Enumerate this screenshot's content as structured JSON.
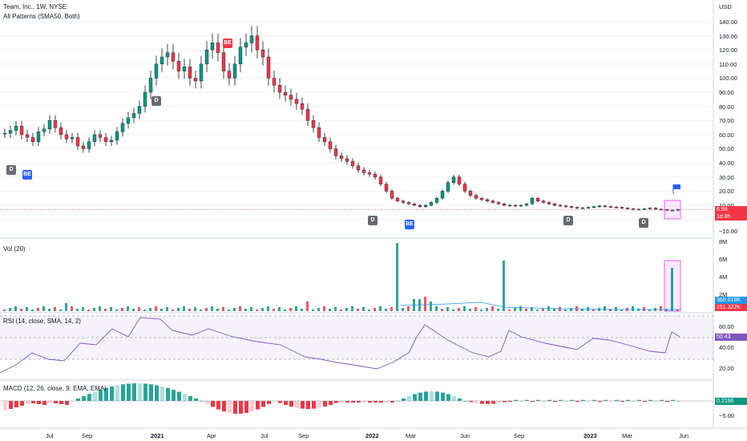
{
  "header": {
    "title": "Team, Inc., 1W, NYSE",
    "indicator": "All Patterns (SMA50, Both)"
  },
  "price_axis": {
    "currency": "USD",
    "ticks": [
      "140.00",
      "130.00",
      "120.00",
      "110.00",
      "100.00",
      "90.00",
      "80.00",
      "70.00",
      "60.00",
      "50.00",
      "40.00",
      "30.00",
      "20.00",
      "10.00",
      "−10.00"
    ],
    "last_price": "6.99",
    "countdown": "1d 8h"
  },
  "volume": {
    "label": "Vol (20)",
    "ticks": [
      "8M",
      "6M",
      "4M",
      "2M"
    ],
    "value_blue": "360.019K",
    "value_red": "151.322K"
  },
  "rsi": {
    "label": "RSI (14, close, SMA, 14, 2)",
    "ticks": [
      "60.00",
      "40.00",
      "20.00"
    ],
    "value": "50.43"
  },
  "macd": {
    "label": "MACD (12, 26, close, 9, EMA, EMA)",
    "ticks": [
      "0.00",
      "−5.00"
    ],
    "value": "0.2196"
  },
  "time_axis": {
    "ticks": [
      {
        "label": "Jul",
        "year": false
      },
      {
        "label": "Sep",
        "year": false
      },
      {
        "label": "2021",
        "year": true
      },
      {
        "label": "Apr",
        "year": false
      },
      {
        "label": "Jul",
        "year": false
      },
      {
        "label": "Sep",
        "year": false
      },
      {
        "label": "2022",
        "year": true
      },
      {
        "label": "Mar",
        "year": false
      },
      {
        "label": "Jun",
        "year": false
      },
      {
        "label": "Sep",
        "year": false
      },
      {
        "label": "2023",
        "year": true
      },
      {
        "label": "Mar",
        "year": false
      },
      {
        "label": "Jun",
        "year": false
      }
    ]
  },
  "pattern_tags": [
    {
      "text": "D",
      "kind": "d"
    },
    {
      "text": "BE",
      "kind": "be"
    },
    {
      "text": "D",
      "kind": "d"
    },
    {
      "text": "BE",
      "kind": "bear"
    },
    {
      "text": "D",
      "kind": "d"
    },
    {
      "text": "BE",
      "kind": "be"
    },
    {
      "text": "D",
      "kind": "d"
    },
    {
      "text": "D",
      "kind": "d"
    }
  ],
  "colors": {
    "up": "#26a69a",
    "up_strong": "#089981",
    "down": "#f23645",
    "blue": "#2962ff",
    "rsi_line": "#7e57c2",
    "grid": "#f0f3fa"
  },
  "chart_data": {
    "type": "candlestick",
    "price_series": [
      61,
      63,
      66,
      60,
      58,
      55,
      62,
      64,
      70,
      65,
      60,
      57,
      58,
      52,
      50,
      55,
      60,
      58,
      55,
      56,
      62,
      68,
      72,
      75,
      80,
      90,
      100,
      110,
      115,
      118,
      112,
      105,
      108,
      100,
      98,
      110,
      120,
      125,
      118,
      105,
      100,
      110,
      122,
      125,
      130,
      120,
      115,
      100,
      95,
      90,
      88,
      85,
      82,
      78,
      70,
      65,
      58,
      55,
      50,
      45,
      43,
      41,
      38,
      35,
      33,
      32,
      30,
      25,
      20,
      15,
      13,
      12,
      11,
      10,
      9,
      10,
      12,
      15,
      20,
      26,
      30,
      25,
      20,
      17,
      15,
      14,
      13,
      12,
      11,
      10,
      10,
      9.5,
      10,
      11,
      15,
      13,
      12,
      11,
      10,
      9.5,
      9,
      8.5,
      8,
      8.2,
      8.5,
      9,
      9.5,
      9,
      8.7,
      8.5,
      8,
      7.5,
      7,
      7.2,
      7.5,
      8,
      7.2,
      7,
      6.5,
      6.5,
      6.99
    ]
  }
}
